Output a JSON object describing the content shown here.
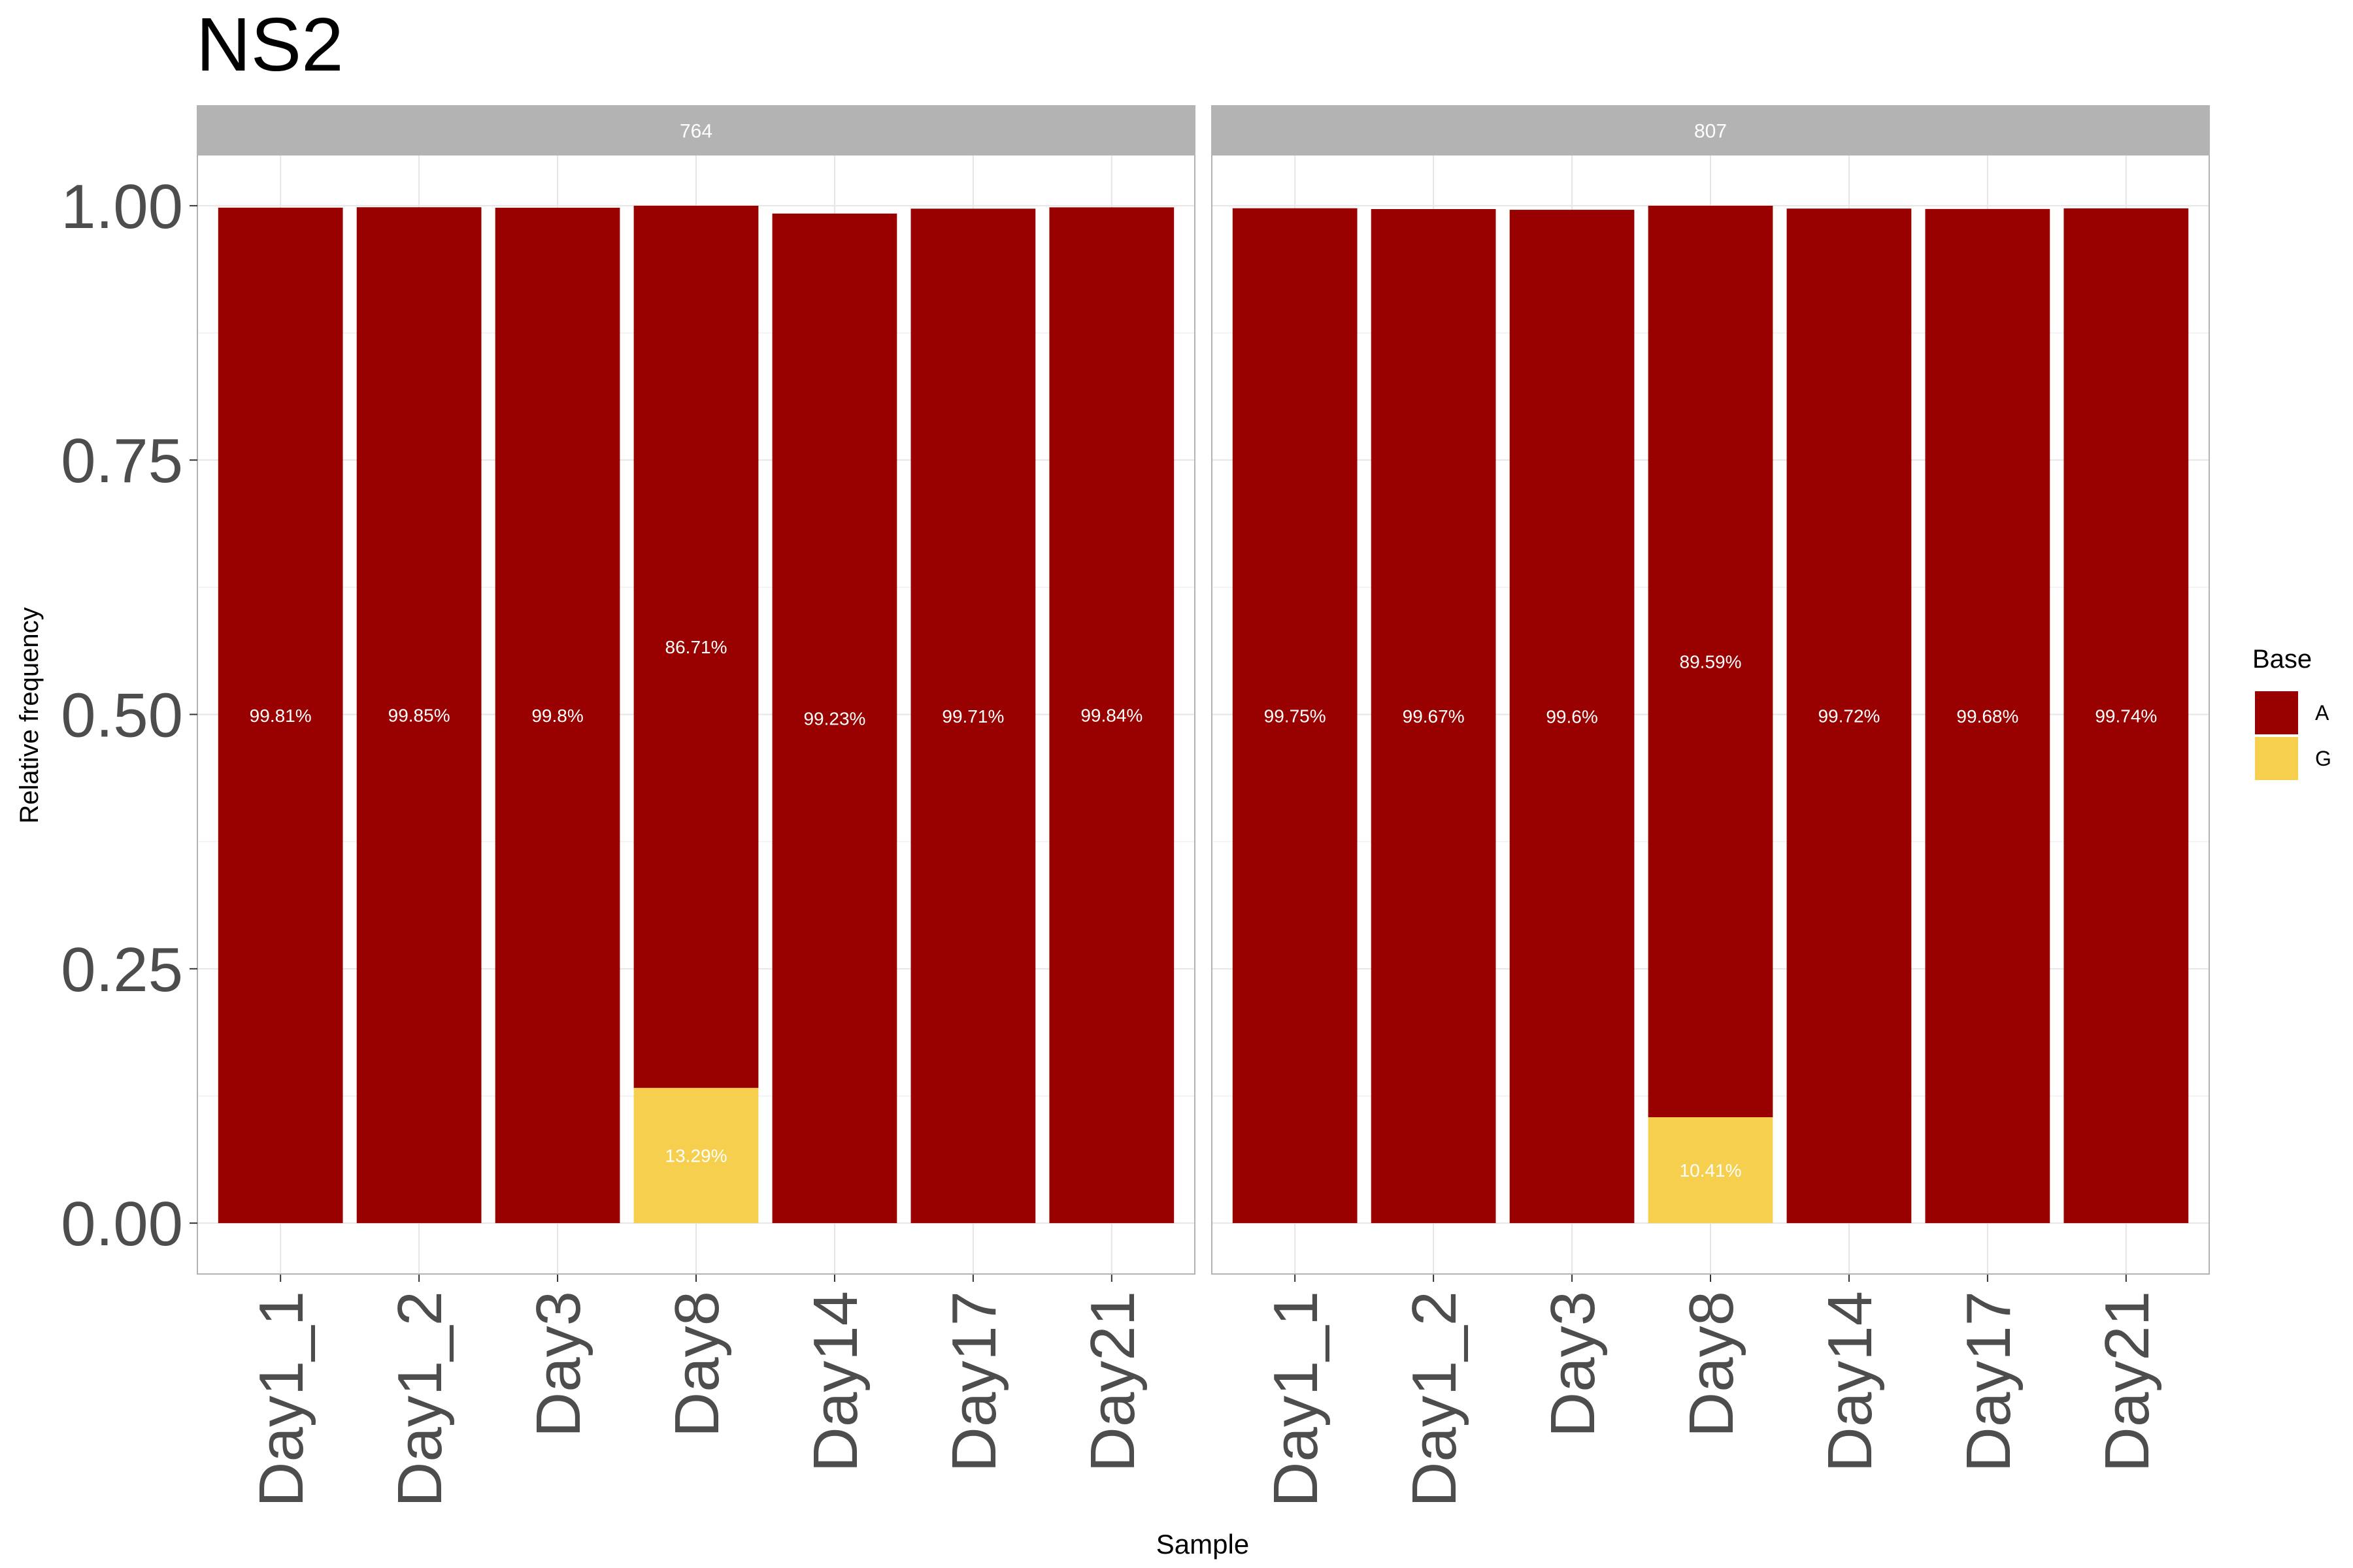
{
  "chart_data": {
    "type": "bar",
    "title": "NS2",
    "xlabel": "Sample",
    "ylabel": "Relative frequency",
    "ylim": [
      -0.05,
      1.05
    ],
    "y_ticks": [
      "0.00",
      "0.25",
      "0.50",
      "0.75",
      "1.00"
    ],
    "stacked": true,
    "grid": true,
    "legend": {
      "title": "Base",
      "position": "right",
      "entries": [
        {
          "name": "A",
          "color": "#990000"
        },
        {
          "name": "G",
          "color": "#F5CF4D"
        }
      ]
    },
    "categories": [
      "Day1_1",
      "Day1_2",
      "Day3",
      "Day8",
      "Day14",
      "Day17",
      "Day21"
    ],
    "panels": [
      {
        "label": "764",
        "series": [
          {
            "name": "A",
            "values": [
              0.9981,
              0.9985,
              0.998,
              0.8671,
              0.9923,
              0.9971,
              0.9984
            ],
            "labels": [
              "99.81%",
              "99.85%",
              "99.8%",
              "86.71%",
              "99.23%",
              "99.71%",
              "99.84%"
            ]
          },
          {
            "name": "G",
            "values": [
              0,
              0,
              0,
              0.1329,
              0,
              0,
              0
            ],
            "labels": [
              "",
              "",
              "",
              "13.29%",
              "",
              "",
              ""
            ]
          }
        ]
      },
      {
        "label": "807",
        "series": [
          {
            "name": "A",
            "values": [
              0.9975,
              0.9967,
              0.996,
              0.8959,
              0.9972,
              0.9968,
              0.9974
            ],
            "labels": [
              "99.75%",
              "99.67%",
              "99.6%",
              "89.59%",
              "99.72%",
              "99.68%",
              "99.74%"
            ]
          },
          {
            "name": "G",
            "values": [
              0,
              0,
              0,
              0.1041,
              0,
              0,
              0
            ],
            "labels": [
              "",
              "",
              "",
              "10.41%",
              "",
              "",
              ""
            ]
          }
        ]
      }
    ]
  }
}
